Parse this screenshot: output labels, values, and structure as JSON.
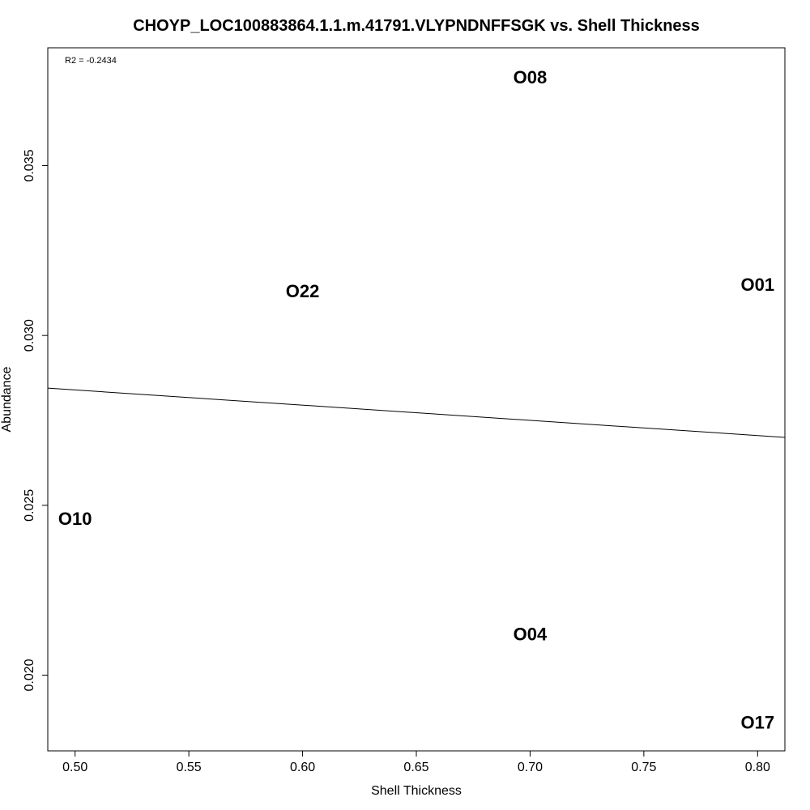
{
  "chart_data": {
    "type": "scatter",
    "title": "CHOYP_LOC100883864.1.1.m.41791.VLYPNDNFFSGK vs. Shell Thickness",
    "xlabel": "Shell Thickness",
    "ylabel": "Abundance",
    "annotation": "R2 = -0.2434",
    "xlim": [
      0.488,
      0.812
    ],
    "ylim": [
      0.01777,
      0.03847
    ],
    "xticks": [
      0.5,
      0.55,
      0.6,
      0.65,
      0.7,
      0.75,
      0.8
    ],
    "xtick_labels": [
      "0.50",
      "0.55",
      "0.60",
      "0.65",
      "0.70",
      "0.75",
      "0.80"
    ],
    "yticks": [
      0.02,
      0.025,
      0.03,
      0.035
    ],
    "ytick_labels": [
      "0.020",
      "0.025",
      "0.030",
      "0.035"
    ],
    "points": [
      {
        "label": "O08",
        "x": 0.7,
        "y": 0.0376
      },
      {
        "label": "O22",
        "x": 0.6,
        "y": 0.0313
      },
      {
        "label": "O01",
        "x": 0.8,
        "y": 0.0315
      },
      {
        "label": "O10",
        "x": 0.5,
        "y": 0.0246
      },
      {
        "label": "O04",
        "x": 0.7,
        "y": 0.0212
      },
      {
        "label": "O17",
        "x": 0.8,
        "y": 0.0186
      }
    ],
    "fit_line": {
      "x": [
        0.488,
        0.812
      ],
      "y": [
        0.02845,
        0.027
      ]
    },
    "grid": false,
    "legend": "none"
  }
}
